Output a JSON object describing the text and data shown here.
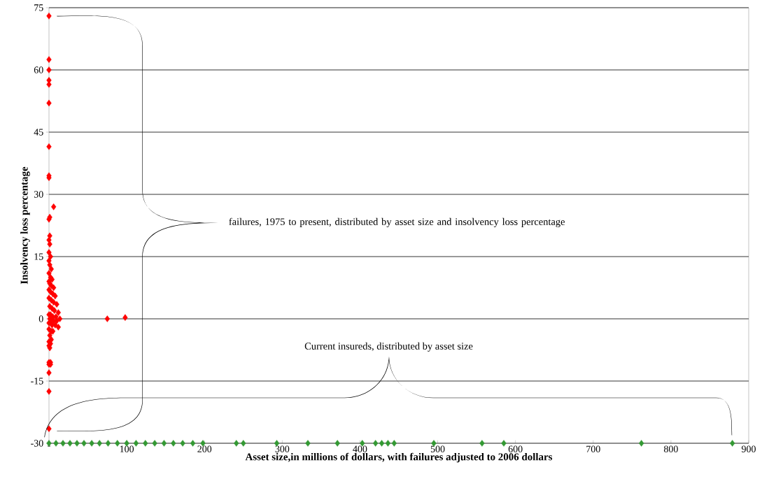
{
  "chart_data": {
    "type": "scatter",
    "xlabel": "Asset size,in millions of dollars, with failures adjusted to 2006 dollars",
    "ylabel": "Insolvency loss percentage",
    "annotations": [
      "failures, 1975 to present, distributed by asset size and insolvency loss percentage",
      "Current insureds, distributed by asset size"
    ],
    "series": [
      {
        "color": "#ff0000",
        "x": [
          0,
          0,
          0,
          0,
          0,
          0,
          0,
          0,
          0,
          6,
          1,
          0,
          1,
          0,
          1,
          0,
          2,
          0,
          1,
          3,
          0,
          2,
          4,
          0,
          1,
          3,
          6,
          0,
          2,
          5,
          8,
          0,
          3,
          6,
          10,
          1,
          4,
          7,
          12,
          0,
          2,
          5,
          9,
          14,
          1,
          3,
          6,
          10,
          0,
          2,
          4,
          8,
          12,
          0,
          3,
          5,
          1,
          3,
          0,
          2,
          0,
          1,
          0,
          2,
          0,
          0,
          2,
          0,
          0,
          75,
          98
        ],
        "values": [
          73,
          62.5,
          60,
          57.5,
          56.5,
          52,
          41.5,
          34.5,
          34,
          27,
          24.5,
          24,
          20,
          19,
          18,
          16,
          15,
          14,
          13,
          12,
          11,
          10,
          9.5,
          9,
          8.5,
          8,
          7.5,
          7,
          6.5,
          6,
          5.5,
          5,
          4.5,
          4,
          3.5,
          3,
          2.5,
          2,
          1.5,
          1,
          1,
          0.5,
          0.5,
          0,
          0,
          0,
          -0.5,
          -0.5,
          -1,
          -1,
          -1.5,
          -1.5,
          -2,
          -2.5,
          -3,
          -3,
          -4,
          -5,
          -5.5,
          -6,
          -6.5,
          -7,
          -10.5,
          -10.5,
          -11,
          -13,
          -11,
          -17.5,
          -26.5,
          0,
          0.3
        ]
      },
      {
        "color": "#339933",
        "x": [
          0,
          9,
          18,
          27,
          36,
          45,
          55,
          65,
          76,
          88,
          100,
          112,
          124,
          136,
          148,
          160,
          172,
          185,
          198,
          241,
          250,
          293,
          333,
          371,
          403,
          420,
          428,
          436,
          444,
          495,
          557,
          585,
          762,
          879
        ],
        "values": [
          -30,
          -30,
          -30,
          -30,
          -30,
          -30,
          -30,
          -30,
          -30,
          -30,
          -30,
          -30,
          -30,
          -30,
          -30,
          -30,
          -30,
          -30,
          -30,
          -30,
          -30,
          -30,
          -30,
          -30,
          -30,
          -30,
          -30,
          -30,
          -30,
          -30,
          -30,
          -30,
          -30,
          -30
        ]
      }
    ],
    "xlim": [
      0,
      900
    ],
    "xticks": [
      {
        "value": 0,
        "label": "-"
      },
      100,
      200,
      300,
      400,
      500,
      600,
      700,
      800,
      900
    ],
    "ylim": [
      -30,
      75
    ],
    "yticks": [
      -30,
      -15,
      0,
      15,
      30,
      45,
      60,
      75
    ],
    "grid": "y",
    "marker": "diamond"
  }
}
